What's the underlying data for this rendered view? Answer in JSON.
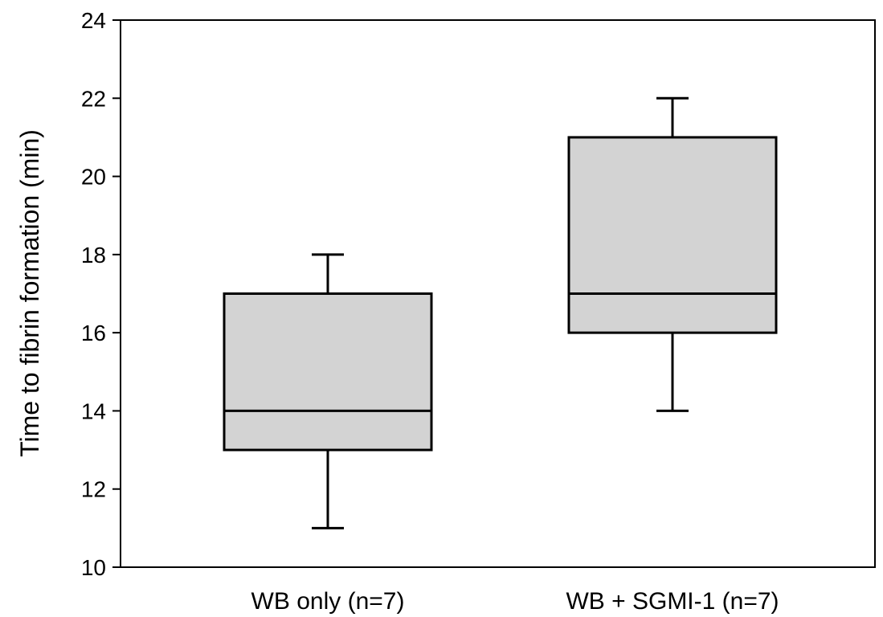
{
  "chart_data": {
    "type": "boxplot",
    "title": "",
    "xlabel": "",
    "ylabel": "Time to fibrin formation (min)",
    "ylim": [
      10,
      24
    ],
    "yticks": [
      10,
      12,
      14,
      16,
      18,
      20,
      22,
      24
    ],
    "grid": false,
    "categories": [
      "WB only (n=7)",
      "WB + SGMI-1 (n=7)"
    ],
    "boxes": [
      {
        "category": "WB only (n=7)",
        "whisker_low": 11,
        "q1": 13,
        "median": 14,
        "q3": 17,
        "whisker_high": 18
      },
      {
        "category": "WB + SGMI-1 (n=7)",
        "whisker_low": 14,
        "q1": 16,
        "median": 17,
        "q3": 21,
        "whisker_high": 22
      }
    ],
    "box_fill": "#d3d3d3",
    "line_color": "#000000"
  }
}
